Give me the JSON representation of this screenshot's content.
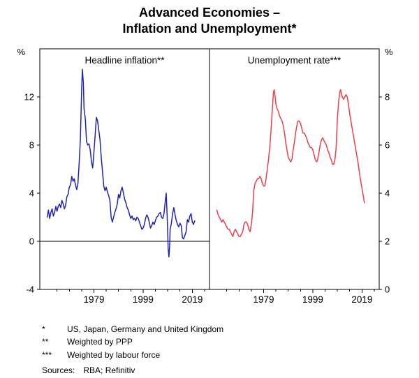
{
  "title": {
    "line1": "Advanced Economies –",
    "line2": "Inflation and Unemployment*"
  },
  "chart_data": {
    "type": "line",
    "x_range": [
      1957,
      2026
    ],
    "x_ticks_labeled": [
      1979,
      1999,
      2019
    ],
    "x_ticks_minor": [
      1964,
      1969,
      1974,
      1984,
      1989,
      1994,
      2004,
      2009,
      2014,
      2024
    ],
    "panels": [
      {
        "title": "Headline inflation**",
        "unit": "%",
        "axis_side": "left",
        "ylim": [
          -4,
          16
        ],
        "yticks": [
          -4,
          0,
          4,
          8,
          12
        ],
        "zero_line": true,
        "series": [
          {
            "name": "Headline inflation",
            "color": "#2024b2",
            "x": [
              1960,
              1960.5,
              1961,
              1961.5,
              1962,
              1962.5,
              1963,
              1963.5,
              1964,
              1964.5,
              1965,
              1965.5,
              1966,
              1966.5,
              1967,
              1967.5,
              1968,
              1968.5,
              1969,
              1969.5,
              1970,
              1970.5,
              1971,
              1971.5,
              1972,
              1972.5,
              1973,
              1973.5,
              1974,
              1974.3,
              1974.7,
              1975,
              1975.5,
              1976,
              1976.5,
              1977,
              1977.5,
              1978,
              1978.5,
              1979,
              1979.5,
              1980,
              1980.5,
              1981,
              1981.5,
              1982,
              1982.5,
              1983,
              1983.5,
              1984,
              1984.5,
              1985,
              1985.5,
              1986,
              1986.5,
              1987,
              1987.5,
              1988,
              1988.5,
              1989,
              1989.5,
              1990,
              1990.5,
              1991,
              1991.5,
              1992,
              1992.5,
              1993,
              1993.5,
              1994,
              1994.5,
              1995,
              1995.5,
              1996,
              1996.5,
              1997,
              1997.5,
              1998,
              1998.5,
              1999,
              1999.5,
              2000,
              2000.5,
              2001,
              2001.5,
              2002,
              2002.5,
              2003,
              2003.5,
              2004,
              2004.5,
              2005,
              2005.5,
              2006,
              2006.5,
              2007,
              2007.5,
              2008,
              2008.4,
              2008.8,
              2009.2,
              2009.5,
              2009.8,
              2010,
              2010.5,
              2011,
              2011.5,
              2012,
              2012.5,
              2013,
              2013.5,
              2014,
              2014.5,
              2015,
              2015.5,
              2016,
              2016.5,
              2017,
              2017.5,
              2018,
              2018.5,
              2019,
              2019.5,
              2020
            ],
            "y": [
              2.0,
              2.6,
              1.9,
              2.4,
              2.7,
              2.1,
              2.4,
              2.9,
              2.5,
              2.9,
              3.1,
              2.8,
              3.4,
              3.1,
              2.7,
              3.0,
              3.7,
              3.9,
              4.5,
              4.7,
              5.4,
              5.0,
              5.2,
              4.7,
              4.3,
              4.8,
              6.5,
              8.5,
              12.5,
              14.3,
              13.2,
              11.0,
              10.2,
              8.3,
              8.0,
              8.1,
              7.6,
              6.6,
              6.1,
              7.4,
              8.8,
              10.3,
              10.0,
              9.2,
              8.4,
              6.9,
              5.8,
              4.6,
              4.2,
              4.5,
              4.1,
              3.8,
              3.4,
              2.0,
              1.6,
              2.0,
              2.4,
              2.7,
              3.1,
              3.9,
              3.6,
              4.2,
              4.5,
              4.0,
              3.5,
              3.2,
              2.8,
              2.6,
              2.2,
              1.9,
              2.1,
              1.8,
              1.9,
              1.7,
              2.0,
              1.9,
              1.6,
              1.3,
              1.0,
              1.1,
              1.4,
              1.9,
              2.2,
              2.0,
              1.6,
              1.1,
              1.3,
              1.6,
              1.4,
              1.7,
              2.0,
              2.1,
              2.3,
              2.4,
              2.0,
              1.9,
              2.3,
              3.3,
              4.0,
              2.0,
              -0.6,
              -1.3,
              -0.4,
              1.0,
              1.5,
              2.3,
              2.8,
              2.2,
              1.7,
              1.4,
              1.2,
              1.5,
              1.3,
              0.3,
              0.2,
              0.5,
              0.8,
              1.8,
              1.6,
              2.1,
              2.3,
              1.6,
              1.4,
              1.7
            ]
          }
        ]
      },
      {
        "title": "Unemployment rate***",
        "unit": "%",
        "axis_side": "right",
        "ylim": [
          0,
          10
        ],
        "yticks": [
          0,
          2,
          4,
          6,
          8
        ],
        "zero_line": false,
        "series": [
          {
            "name": "Unemployment rate",
            "color": "#ee3f4d",
            "x": [
              1960,
              1960.5,
              1961,
              1961.5,
              1962,
              1962.5,
              1963,
              1963.5,
              1964,
              1964.5,
              1965,
              1965.5,
              1966,
              1966.5,
              1967,
              1967.5,
              1968,
              1968.5,
              1969,
              1969.5,
              1970,
              1970.5,
              1971,
              1971.5,
              1972,
              1972.5,
              1973,
              1973.5,
              1974,
              1974.5,
              1975,
              1975.5,
              1976,
              1976.5,
              1977,
              1977.5,
              1978,
              1978.5,
              1979,
              1979.5,
              1980,
              1980.5,
              1981,
              1981.5,
              1982,
              1982.5,
              1983,
              1983.3,
              1983.7,
              1984,
              1984.5,
              1985,
              1985.5,
              1986,
              1986.5,
              1987,
              1987.5,
              1988,
              1988.5,
              1989,
              1989.5,
              1990,
              1990.5,
              1991,
              1991.5,
              1992,
              1992.5,
              1993,
              1993.5,
              1994,
              1994.5,
              1995,
              1995.5,
              1996,
              1996.5,
              1997,
              1997.5,
              1998,
              1998.5,
              1999,
              1999.5,
              2000,
              2000.5,
              2001,
              2001.5,
              2002,
              2002.5,
              2003,
              2003.5,
              2004,
              2004.5,
              2005,
              2005.5,
              2006,
              2006.5,
              2007,
              2007.5,
              2008,
              2008.5,
              2009,
              2009.5,
              2010,
              2010.3,
              2010.7,
              2011,
              2011.5,
              2012,
              2012.5,
              2013,
              2013.5,
              2014,
              2014.5,
              2015,
              2015.5,
              2016,
              2016.5,
              2017,
              2017.5,
              2018,
              2018.5,
              2019,
              2019.5,
              2020
            ],
            "y": [
              3.3,
              3.1,
              3.0,
              2.9,
              2.8,
              2.9,
              2.8,
              2.7,
              2.6,
              2.5,
              2.5,
              2.4,
              2.3,
              2.2,
              2.4,
              2.5,
              2.4,
              2.3,
              2.2,
              2.2,
              2.3,
              2.4,
              2.7,
              2.8,
              2.8,
              2.7,
              2.5,
              2.4,
              2.7,
              3.2,
              4.1,
              4.4,
              4.5,
              4.6,
              4.6,
              4.7,
              4.6,
              4.4,
              4.3,
              4.3,
              4.6,
              5.0,
              5.4,
              5.9,
              6.6,
              7.4,
              8.2,
              8.3,
              8.0,
              7.7,
              7.5,
              7.4,
              7.2,
              7.1,
              7.0,
              6.8,
              6.5,
              6.1,
              5.8,
              5.5,
              5.4,
              5.3,
              5.4,
              5.8,
              6.1,
              6.5,
              6.8,
              7.0,
              7.0,
              6.9,
              6.7,
              6.5,
              6.5,
              6.4,
              6.3,
              6.1,
              6.0,
              5.9,
              5.9,
              5.8,
              5.6,
              5.4,
              5.3,
              5.4,
              5.7,
              6.0,
              6.2,
              6.3,
              6.2,
              6.1,
              6.0,
              5.8,
              5.7,
              5.5,
              5.4,
              5.2,
              5.2,
              5.4,
              5.9,
              7.1,
              7.8,
              8.2,
              8.3,
              8.1,
              8.0,
              7.9,
              8.0,
              8.1,
              8.0,
              7.7,
              7.3,
              7.0,
              6.7,
              6.4,
              6.1,
              5.8,
              5.5,
              5.2,
              4.8,
              4.5,
              4.2,
              3.9,
              3.6
            ]
          }
        ]
      }
    ]
  },
  "footnotes": [
    {
      "symbol": "*",
      "text": "US, Japan, Germany and United Kingdom"
    },
    {
      "symbol": "**",
      "text": "Weighted by PPP"
    },
    {
      "symbol": "***",
      "text": "Weighted by labour force"
    }
  ],
  "sources": {
    "label": "Sources:",
    "text": "RBA; Refinitiv"
  }
}
